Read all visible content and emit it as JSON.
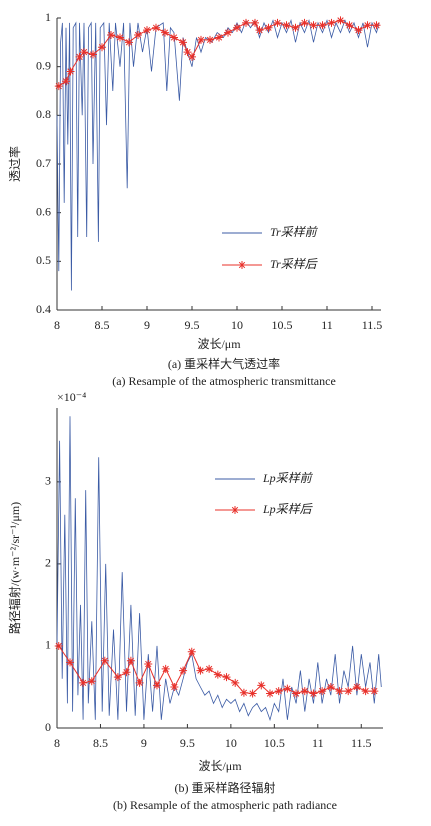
{
  "chart_data": [
    {
      "type": "line",
      "xlabel": "波长/μm",
      "ylabel": "透过率",
      "caption": [
        "(a) 重采样大气透过率",
        "(a) Resample of the atmospheric transmittance"
      ],
      "xlim": [
        8,
        11.6
      ],
      "xticks": [
        8,
        8.5,
        9,
        9.5,
        10,
        10.5,
        11,
        11.5
      ],
      "ylim": [
        0.4,
        1
      ],
      "yticks": [
        0.4,
        0.5,
        0.6,
        0.7,
        0.8,
        0.9,
        1
      ],
      "grid": false,
      "legend": "lower-right",
      "series": [
        {
          "name": "Tr采样前",
          "color": "#3b5ba5",
          "marker": "none",
          "x": [
            8.0,
            8.02,
            8.04,
            8.06,
            8.08,
            8.1,
            8.12,
            8.14,
            8.16,
            8.18,
            8.21,
            8.23,
            8.25,
            8.28,
            8.3,
            8.33,
            8.35,
            8.38,
            8.4,
            8.43,
            8.46,
            8.48,
            8.52,
            8.55,
            8.58,
            8.62,
            8.65,
            8.7,
            8.74,
            8.78,
            8.81,
            8.85,
            8.9,
            8.95,
            9.0,
            9.05,
            9.1,
            9.18,
            9.22,
            9.26,
            9.3,
            9.36,
            9.4,
            9.45,
            9.5,
            9.55,
            9.6,
            9.65,
            9.72,
            9.78,
            9.85,
            9.9,
            9.95,
            10.0,
            10.05,
            10.1,
            10.15,
            10.2,
            10.25,
            10.3,
            10.35,
            10.4,
            10.45,
            10.5,
            10.55,
            10.6,
            10.65,
            10.7,
            10.75,
            10.8,
            10.85,
            10.9,
            10.95,
            11.0,
            11.05,
            11.1,
            11.15,
            11.2,
            11.25,
            11.3,
            11.35,
            11.4,
            11.45,
            11.5,
            11.55,
            11.58
          ],
          "values": [
            0.8,
            0.48,
            0.95,
            0.99,
            0.62,
            0.98,
            0.74,
            0.99,
            0.44,
            0.98,
            0.99,
            0.55,
            0.99,
            0.8,
            0.99,
            0.55,
            0.98,
            0.99,
            0.7,
            0.99,
            0.54,
            0.98,
            0.99,
            0.78,
            0.99,
            0.85,
            0.99,
            0.9,
            0.99,
            0.65,
            0.99,
            0.9,
            0.99,
            0.93,
            0.98,
            0.89,
            0.98,
            0.99,
            0.85,
            0.98,
            0.97,
            0.83,
            0.96,
            0.93,
            0.9,
            0.96,
            0.93,
            0.96,
            0.95,
            0.97,
            0.96,
            0.98,
            0.97,
            0.99,
            0.97,
            0.995,
            0.98,
            0.995,
            0.96,
            0.99,
            0.97,
            0.995,
            0.96,
            0.99,
            0.97,
            0.995,
            0.95,
            0.99,
            0.97,
            0.995,
            0.95,
            0.99,
            0.97,
            0.995,
            0.96,
            0.99,
            0.97,
            0.995,
            0.97,
            0.99,
            0.96,
            0.99,
            0.94,
            0.99,
            0.97,
            0.99
          ]
        },
        {
          "name": "Tr采样后",
          "color": "#e8302a",
          "marker": "asterisk",
          "x": [
            8.02,
            8.1,
            8.15,
            8.25,
            8.3,
            8.4,
            8.5,
            8.6,
            8.7,
            8.8,
            8.9,
            9.0,
            9.1,
            9.2,
            9.3,
            9.4,
            9.45,
            9.5,
            9.6,
            9.7,
            9.8,
            9.9,
            10.0,
            10.1,
            10.2,
            10.25,
            10.35,
            10.45,
            10.55,
            10.65,
            10.75,
            10.85,
            10.95,
            11.05,
            11.15,
            11.25,
            11.35,
            11.45,
            11.55
          ],
          "values": [
            0.86,
            0.87,
            0.89,
            0.92,
            0.93,
            0.925,
            0.94,
            0.965,
            0.96,
            0.95,
            0.965,
            0.975,
            0.98,
            0.97,
            0.96,
            0.95,
            0.93,
            0.92,
            0.955,
            0.955,
            0.96,
            0.97,
            0.98,
            0.99,
            0.99,
            0.975,
            0.98,
            0.99,
            0.985,
            0.98,
            0.99,
            0.985,
            0.985,
            0.99,
            0.995,
            0.985,
            0.975,
            0.985,
            0.985
          ]
        }
      ]
    },
    {
      "type": "line",
      "xlabel": "波长/μm",
      "ylabel": "路径辐射/(w·m⁻²/sr⁻¹/μm)",
      "ymultiplier": "×10⁻⁴",
      "caption": [
        "(b) 重采样路径辐射",
        "(b) Resample of the atmospheric path radiance"
      ],
      "xlim": [
        8,
        11.75
      ],
      "xticks": [
        8,
        8.5,
        9,
        9.5,
        10,
        10.5,
        11,
        11.5
      ],
      "ylim": [
        0,
        3.9
      ],
      "yticks": [
        0,
        1,
        2,
        3
      ],
      "grid": false,
      "legend": "upper-right",
      "series": [
        {
          "name": "Lp采样前",
          "color": "#3b5ba5",
          "marker": "none",
          "x": [
            8.0,
            8.03,
            8.06,
            8.09,
            8.12,
            8.15,
            8.18,
            8.21,
            8.24,
            8.27,
            8.3,
            8.33,
            8.36,
            8.4,
            8.44,
            8.48,
            8.52,
            8.56,
            8.6,
            8.65,
            8.7,
            8.75,
            8.8,
            8.85,
            8.9,
            8.95,
            9.0,
            9.05,
            9.1,
            9.15,
            9.2,
            9.25,
            9.3,
            9.35,
            9.4,
            9.45,
            9.5,
            9.55,
            9.6,
            9.65,
            9.7,
            9.75,
            9.8,
            9.85,
            9.9,
            9.95,
            10.0,
            10.05,
            10.1,
            10.15,
            10.2,
            10.25,
            10.3,
            10.35,
            10.4,
            10.45,
            10.5,
            10.55,
            10.6,
            10.65,
            10.7,
            10.75,
            10.8,
            10.85,
            10.9,
            10.95,
            11.0,
            11.05,
            11.1,
            11.15,
            11.2,
            11.25,
            11.3,
            11.35,
            11.4,
            11.45,
            11.5,
            11.55,
            11.6,
            11.65,
            11.7,
            11.73
          ],
          "values": [
            1.0,
            3.5,
            0.6,
            2.6,
            0.3,
            3.8,
            0.2,
            2.8,
            0.4,
            1.5,
            0.1,
            2.9,
            0.3,
            1.3,
            0.1,
            3.3,
            0.2,
            2.0,
            0.15,
            1.2,
            0.1,
            1.9,
            0.2,
            1.5,
            0.15,
            1.4,
            0.1,
            0.9,
            0.2,
            1.0,
            0.1,
            0.6,
            0.3,
            0.5,
            0.4,
            0.6,
            0.8,
            0.9,
            0.6,
            0.5,
            0.4,
            0.45,
            0.3,
            0.4,
            0.25,
            0.35,
            0.3,
            0.35,
            0.2,
            0.3,
            0.15,
            0.25,
            0.3,
            0.2,
            0.25,
            0.1,
            0.3,
            0.2,
            0.6,
            0.1,
            0.5,
            0.3,
            0.7,
            0.2,
            0.6,
            0.3,
            0.8,
            0.3,
            0.6,
            0.4,
            0.9,
            0.3,
            0.7,
            0.5,
            1.0,
            0.4,
            0.9,
            0.5,
            0.8,
            0.3,
            0.9,
            0.5
          ]
        },
        {
          "name": "Lp采样后",
          "color": "#e8302a",
          "marker": "asterisk",
          "x": [
            8.02,
            8.15,
            8.3,
            8.4,
            8.55,
            8.7,
            8.8,
            8.85,
            8.95,
            9.05,
            9.15,
            9.25,
            9.35,
            9.45,
            9.55,
            9.65,
            9.75,
            9.85,
            9.95,
            10.05,
            10.15,
            10.25,
            10.35,
            10.45,
            10.55,
            10.65,
            10.75,
            10.85,
            10.95,
            11.05,
            11.15,
            11.25,
            11.35,
            11.45,
            11.55,
            11.65
          ],
          "values": [
            1.0,
            0.8,
            0.55,
            0.57,
            0.82,
            0.62,
            0.68,
            0.82,
            0.55,
            0.78,
            0.52,
            0.72,
            0.5,
            0.7,
            0.93,
            0.7,
            0.72,
            0.65,
            0.62,
            0.55,
            0.43,
            0.42,
            0.52,
            0.42,
            0.45,
            0.48,
            0.42,
            0.45,
            0.42,
            0.45,
            0.5,
            0.45,
            0.45,
            0.5,
            0.45,
            0.45
          ]
        }
      ]
    }
  ]
}
